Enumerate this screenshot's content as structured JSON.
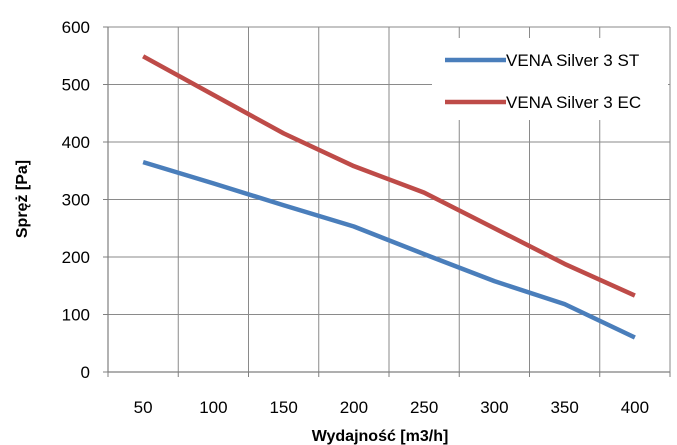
{
  "chart_data": {
    "type": "line",
    "title": "",
    "xlabel": "Wydajność [m3/h]",
    "ylabel": "Spręż [Pa]",
    "x": [
      50,
      100,
      150,
      200,
      250,
      300,
      350,
      400
    ],
    "xlim": [
      25,
      425
    ],
    "ylim": [
      0,
      600
    ],
    "yticks": [
      0,
      100,
      200,
      300,
      400,
      500,
      600
    ],
    "grid": true,
    "legend_position": "top-right",
    "series": [
      {
        "name": "VENA Silver 3 ST",
        "color": "#4a7ebb",
        "values": [
          365,
          328,
          290,
          253,
          205,
          158,
          118,
          60
        ]
      },
      {
        "name": "VENA Silver 3 EC",
        "color": "#be4b48",
        "values": [
          549,
          482,
          415,
          358,
          312,
          250,
          188,
          133
        ]
      }
    ]
  }
}
